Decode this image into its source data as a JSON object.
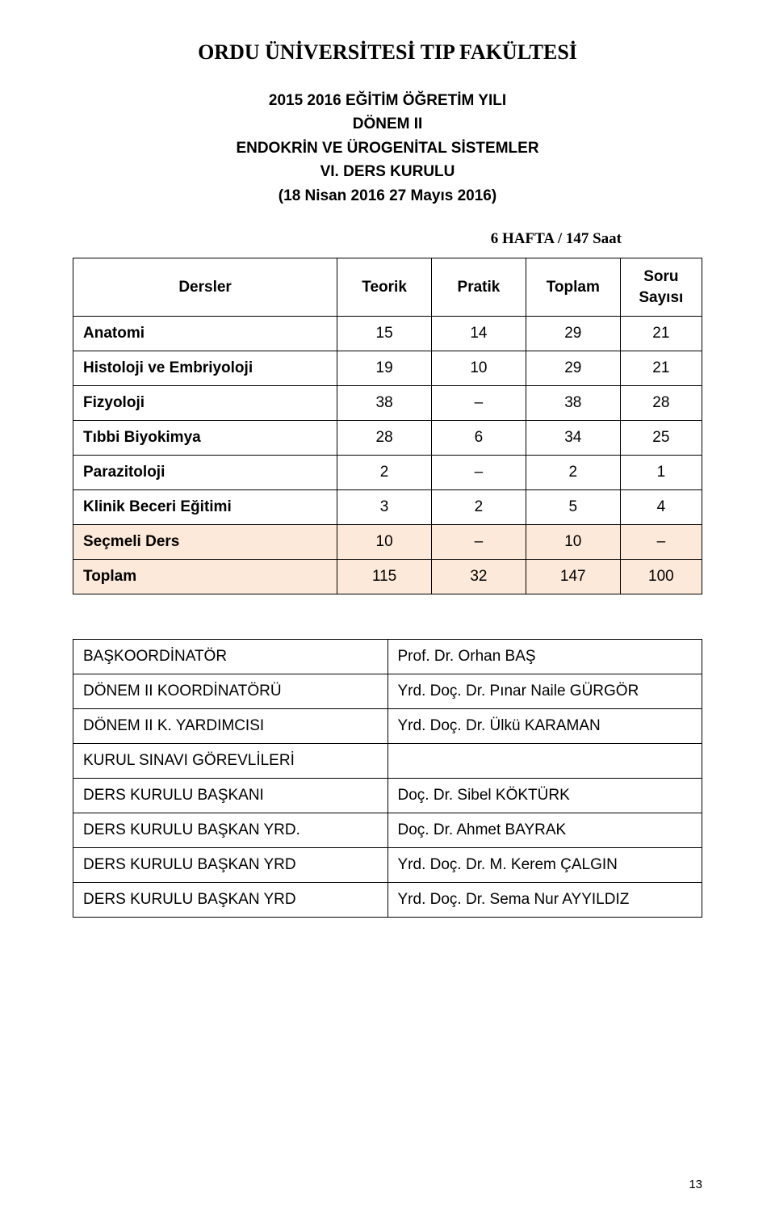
{
  "title": "ORDU ÜNİVERSİTESİ TIP FAKÜLTESİ",
  "sub_lines": [
    "2015 2016 EĞİTİM ÖĞRETİM YILI",
    "DÖNEM II",
    "ENDOKRİN VE ÜROGENİTAL SİSTEMLER",
    "VI. DERS KURULU",
    "(18 Nisan 2016 27 Mayıs 2016)"
  ],
  "week_line": "6 HAFTA / 147 Saat",
  "table": {
    "headers": {
      "dersler": "Dersler",
      "teorik": "Teorik",
      "pratik": "Pratik",
      "toplam": "Toplam",
      "soru_line1": "Soru",
      "soru_line2": "Sayısı"
    },
    "rows": [
      {
        "label": "Anatomi",
        "teorik": "15",
        "pratik": "14",
        "toplam": "29",
        "soru": "21",
        "highlight": false
      },
      {
        "label": "Histoloji ve Embriyoloji",
        "teorik": "19",
        "pratik": "10",
        "toplam": "29",
        "soru": "21",
        "highlight": false
      },
      {
        "label": "Fizyoloji",
        "teorik": "38",
        "pratik": "–",
        "toplam": "38",
        "soru": "28",
        "highlight": false
      },
      {
        "label": "Tıbbi Biyokimya",
        "teorik": "28",
        "pratik": "6",
        "toplam": "34",
        "soru": "25",
        "highlight": false
      },
      {
        "label": "Parazitoloji",
        "teorik": "2",
        "pratik": "–",
        "toplam": "2",
        "soru": "1",
        "highlight": false
      },
      {
        "label": "Klinik Beceri Eğitimi",
        "teorik": "3",
        "pratik": "2",
        "toplam": "5",
        "soru": "4",
        "highlight": false
      },
      {
        "label": "Seçmeli Ders",
        "teorik": "10",
        "pratik": "–",
        "toplam": "10",
        "soru": "–",
        "highlight": true
      },
      {
        "label": "Toplam",
        "teorik": "115",
        "pratik": "32",
        "toplam": "147",
        "soru": "100",
        "highlight": true
      }
    ]
  },
  "roles": [
    {
      "role": "BAŞKOORDİNATÖR",
      "name": "Prof. Dr. Orhan BAŞ"
    },
    {
      "role": "DÖNEM II KOORDİNATÖRÜ",
      "name": "Yrd. Doç. Dr. Pınar Naile GÜRGÖR"
    },
    {
      "role": "DÖNEM II K. YARDIMCISI",
      "name": "Yrd. Doç. Dr. Ülkü KARAMAN"
    },
    {
      "role": "KURUL SINAVI GÖREVLİLERİ",
      "name": ""
    },
    {
      "role": "DERS KURULU BAŞKANI",
      "name": "Doç. Dr. Sibel KÖKTÜRK"
    },
    {
      "role": "DERS KURULU BAŞKAN YRD.",
      "name": "Doç. Dr. Ahmet BAYRAK"
    },
    {
      "role": "DERS KURULU BAŞKAN YRD",
      "name": "Yrd. Doç. Dr. M. Kerem ÇALGIN"
    },
    {
      "role": "DERS KURULU BAŞKAN YRD",
      "name": "Yrd. Doç. Dr. Sema Nur AYYILDIZ"
    }
  ],
  "page_number": "13"
}
